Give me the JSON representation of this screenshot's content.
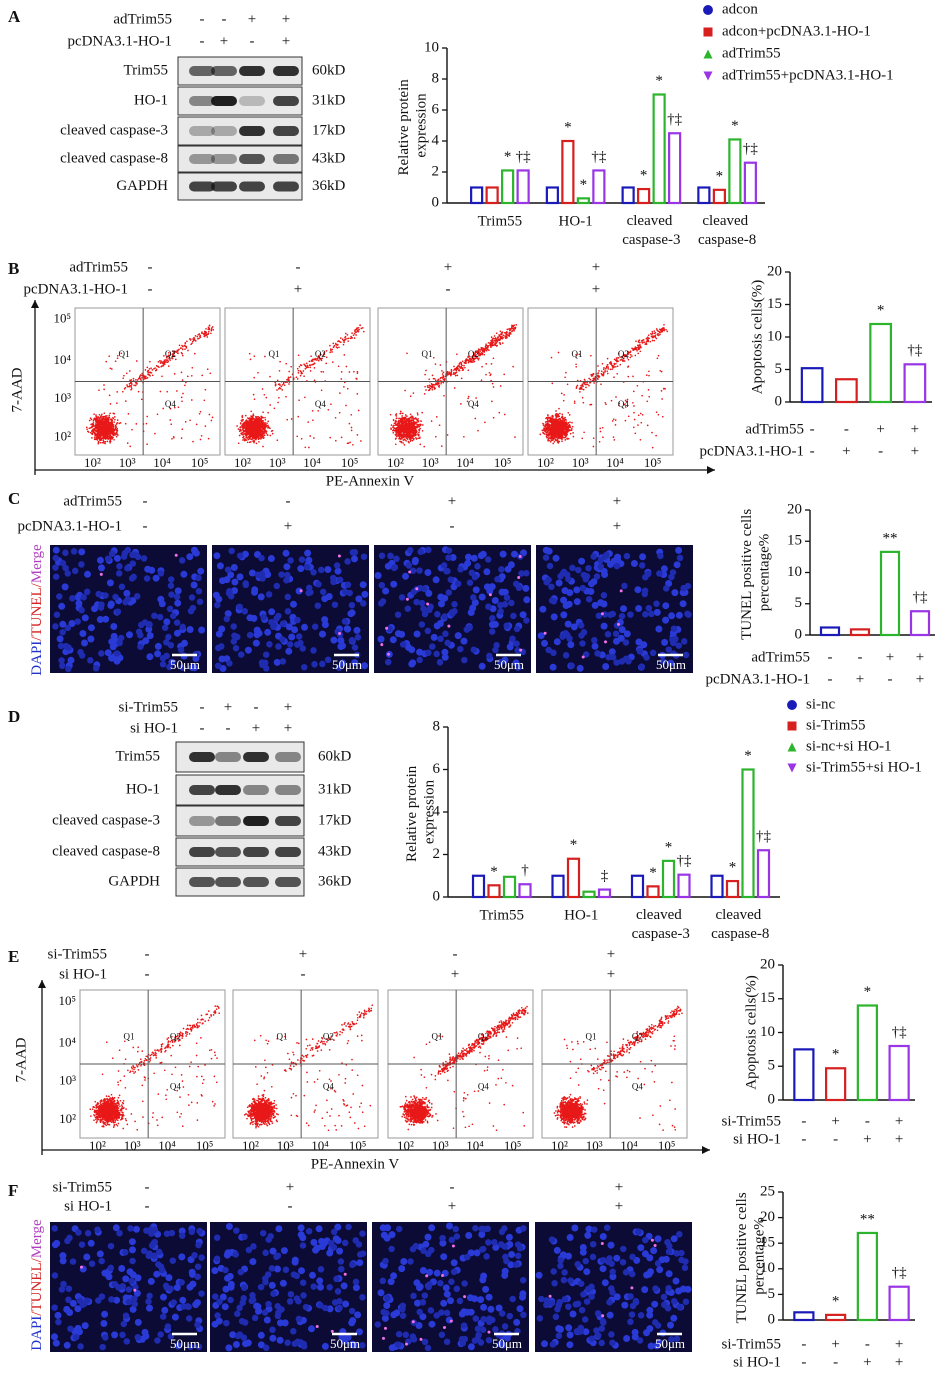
{
  "panels": [
    {
      "letter": "A",
      "conditions": [
        {
          "name": "adTrim55",
          "signs": [
            "-",
            "-",
            "+",
            "+"
          ]
        },
        {
          "name": "pcDNA3.1-HO-1",
          "signs": [
            "-",
            "+",
            "-",
            "+"
          ]
        }
      ],
      "blot": [
        {
          "name": "Trim55",
          "size": "60kD"
        },
        {
          "name": "HO-1",
          "size": "31kD"
        },
        {
          "name": "cleaved caspase-3",
          "size": "17kD"
        },
        {
          "name": "cleaved caspase-8",
          "size": "43kD"
        },
        {
          "name": "GAPDH",
          "size": "36kD"
        }
      ]
    },
    {
      "letter": "B",
      "conditions": [
        {
          "name": "adTrim55",
          "signs": [
            "-",
            "-",
            "+",
            "+"
          ]
        },
        {
          "name": "pcDNA3.1-HO-1",
          "signs": [
            "-",
            "+",
            "-",
            "+"
          ]
        }
      ]
    },
    {
      "letter": "C",
      "conditions": [
        {
          "name": "adTrim55",
          "signs": [
            "-",
            "-",
            "+",
            "+"
          ]
        },
        {
          "name": "pcDNA3.1-HO-1",
          "signs": [
            "-",
            "+",
            "-",
            "+"
          ]
        }
      ]
    },
    {
      "letter": "D",
      "conditions": [
        {
          "name": "si-Trim55",
          "signs": [
            "-",
            "+",
            "-",
            "+"
          ]
        },
        {
          "name": "si HO-1",
          "signs": [
            "-",
            "-",
            "+",
            "+"
          ]
        }
      ],
      "blot": [
        {
          "name": "Trim55",
          "size": "60kD"
        },
        {
          "name": "HO-1",
          "size": "31kD"
        },
        {
          "name": "cleaved caspase-3",
          "size": "17kD"
        },
        {
          "name": "cleaved caspase-8",
          "size": "43kD"
        },
        {
          "name": "GAPDH",
          "size": "36kD"
        }
      ]
    },
    {
      "letter": "E",
      "conditions": [
        {
          "name": "si-Trim55",
          "signs": [
            "-",
            "+",
            "-",
            "+"
          ]
        },
        {
          "name": "si HO-1",
          "signs": [
            "-",
            "-",
            "+",
            "+"
          ]
        }
      ]
    },
    {
      "letter": "F",
      "conditions": [
        {
          "name": "si-Trim55",
          "signs": [
            "-",
            "+",
            "-",
            "+"
          ]
        },
        {
          "name": "si HO-1",
          "signs": [
            "-",
            "-",
            "+",
            "+"
          ]
        }
      ]
    }
  ],
  "flow": {
    "ticks": [
      "10²",
      "10³",
      "10⁴",
      "10⁵"
    ],
    "quadrants": [
      "Q1",
      "Q2",
      "Q4"
    ],
    "xlabel": "PE-Annexin V",
    "ylabel": "7-AAD"
  },
  "micro": {
    "stain": [
      {
        "text": "DAPI",
        "color": "#2233cc"
      },
      {
        "text": "/TUNEL/",
        "color": "#d42020"
      },
      {
        "text": "Merge",
        "color": "#b040c0"
      }
    ],
    "scale": "50μm"
  },
  "chart_data": [
    {
      "type": "bar",
      "ylabel": "Relative protein expression",
      "categories": [
        "Trim55",
        "HO-1",
        "cleaved caspase-3",
        "cleaved caspase-8"
      ],
      "series": [
        {
          "name": "adcon",
          "color": "#1a1ab8",
          "marker": "circle",
          "values": [
            1,
            1,
            1,
            1
          ],
          "annotations": [
            null,
            null,
            null,
            null
          ]
        },
        {
          "name": "adcon+pcDNA3.1-HO-1",
          "color": "#d61f1f",
          "marker": "square",
          "values": [
            1,
            4,
            0.9,
            0.85
          ],
          "annotations": [
            null,
            "*",
            "*",
            "*"
          ]
        },
        {
          "name": "adTrim55",
          "color": "#2cb52c",
          "marker": "triangle",
          "values": [
            2.1,
            0.3,
            7,
            4.1
          ],
          "annotations": [
            "*",
            "*",
            "*",
            "*"
          ]
        },
        {
          "name": "adTrim55+pcDNA3.1-HO-1",
          "color": "#9a35e6",
          "marker": "down-triangle",
          "values": [
            2.1,
            2.1,
            4.5,
            2.6
          ],
          "annotations": [
            "†‡",
            "†‡",
            "†‡",
            "†‡"
          ]
        }
      ],
      "ylim": [
        0,
        10
      ],
      "yticks": [
        0,
        2,
        4,
        6,
        8,
        10
      ]
    },
    {
      "type": "bar",
      "ylabel": "Apoptosis cells(%)",
      "values": [
        5.2,
        3.5,
        12,
        5.8
      ],
      "colors": [
        "#1a1ab8",
        "#d61f1f",
        "#2cb52c",
        "#9a35e6"
      ],
      "annotations": [
        null,
        null,
        "*",
        "†‡"
      ],
      "ylim": [
        0,
        20
      ],
      "yticks": [
        0,
        5,
        10,
        15,
        20
      ]
    },
    {
      "type": "bar",
      "ylabel": "TUNEL positive cells percentage%",
      "values": [
        1.2,
        0.9,
        13.3,
        3.8
      ],
      "colors": [
        "#1a1ab8",
        "#d61f1f",
        "#2cb52c",
        "#9a35e6"
      ],
      "annotations": [
        null,
        null,
        "**",
        "†‡"
      ],
      "ylim": [
        0,
        20
      ],
      "yticks": [
        0,
        5,
        10,
        15,
        20
      ]
    },
    {
      "type": "bar",
      "ylabel": "Relative protein expression",
      "categories": [
        "Trim55",
        "HO-1",
        "cleaved caspase-3",
        "cleaved caspase-8"
      ],
      "series": [
        {
          "name": "si-nc",
          "color": "#1a1ab8",
          "marker": "circle",
          "values": [
            1,
            1,
            1,
            1
          ],
          "annotations": [
            null,
            null,
            null,
            null
          ]
        },
        {
          "name": "si-Trim55",
          "color": "#d61f1f",
          "marker": "square",
          "values": [
            0.55,
            1.8,
            0.5,
            0.75
          ],
          "annotations": [
            "*",
            "*",
            "*",
            "*"
          ]
        },
        {
          "name": "si-nc+si HO-1",
          "color": "#2cb52c",
          "marker": "triangle",
          "values": [
            0.95,
            0.25,
            1.7,
            6
          ],
          "annotations": [
            null,
            null,
            "*",
            "*"
          ]
        },
        {
          "name": "si-Trim55+si HO-1",
          "color": "#9a35e6",
          "marker": "down-triangle",
          "values": [
            0.6,
            0.35,
            1.05,
            2.2
          ],
          "annotations": [
            "†",
            "‡",
            "†‡",
            "†‡"
          ]
        }
      ],
      "ylim": [
        0,
        8
      ],
      "yticks": [
        0,
        2,
        4,
        6,
        8
      ]
    },
    {
      "type": "bar",
      "ylabel": "Apoptosis cells(%)",
      "values": [
        7.5,
        4.7,
        14,
        8
      ],
      "colors": [
        "#1a1ab8",
        "#d61f1f",
        "#2cb52c",
        "#9a35e6"
      ],
      "annotations": [
        null,
        "*",
        "*",
        "†‡"
      ],
      "ylim": [
        0,
        20
      ],
      "yticks": [
        0,
        5,
        10,
        15,
        20
      ]
    },
    {
      "type": "bar",
      "ylabel": "TUNEL positive cells percentage%",
      "values": [
        1.5,
        1,
        17,
        6.5
      ],
      "colors": [
        "#1a1ab8",
        "#d61f1f",
        "#2cb52c",
        "#9a35e6"
      ],
      "annotations": [
        null,
        "*",
        "**",
        "†‡"
      ],
      "ylim": [
        0,
        25
      ],
      "yticks": [
        0,
        5,
        10,
        15,
        20,
        25
      ]
    }
  ]
}
